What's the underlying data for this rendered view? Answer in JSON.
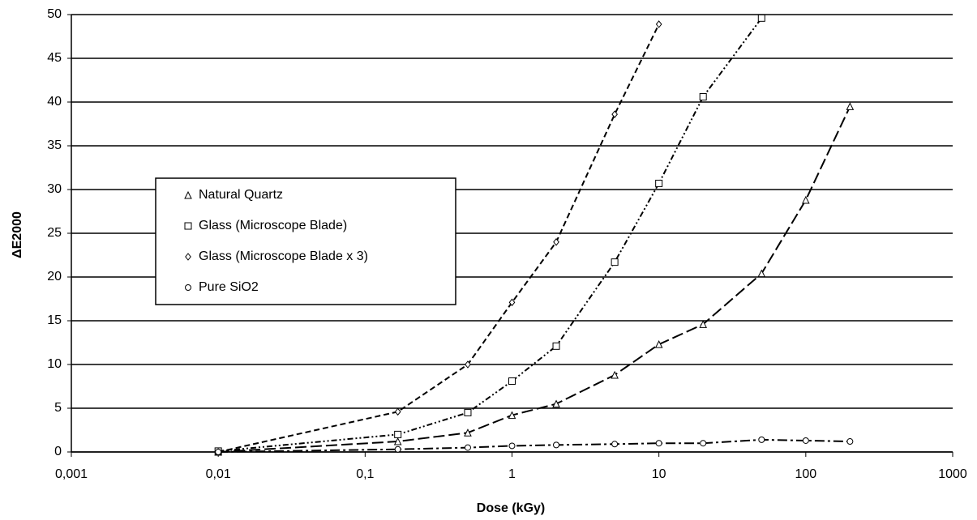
{
  "chart_data": {
    "type": "scatter",
    "x_label": "Dose (kGy)",
    "y_label": "ΔE2000",
    "xscale": "log",
    "xlim": [
      0.001,
      1000
    ],
    "xticks": [
      {
        "value": 0.001,
        "label": "0,001"
      },
      {
        "value": 0.01,
        "label": "0,01"
      },
      {
        "value": 0.1,
        "label": "0,1"
      },
      1,
      10,
      100,
      1000
    ],
    "ylim": [
      0,
      50
    ],
    "yticks": [
      0,
      5,
      10,
      15,
      20,
      25,
      30,
      35,
      40,
      45,
      50
    ],
    "grid": true,
    "legend": "left",
    "series": [
      {
        "name": "Natural Quartz",
        "marker": "triangle",
        "color": "#000000",
        "x": [
          0.01,
          0.167,
          0.5,
          1,
          2,
          5,
          10,
          20,
          50,
          100,
          200
        ],
        "values": [
          0,
          1.2,
          2.2,
          4.2,
          5.5,
          8.8,
          12.3,
          14.6,
          20.4,
          28.8,
          39.5
        ]
      },
      {
        "name": "Glass (Microscope Blade)",
        "marker": "square",
        "color": "#000000",
        "x": [
          0.01,
          0.167,
          0.5,
          1,
          2,
          5,
          10,
          20,
          50
        ],
        "values": [
          0.1,
          2,
          4.5,
          8.1,
          12.1,
          21.7,
          30.7,
          40.6,
          49.6
        ]
      },
      {
        "name": "Glass (Microscope Blade x 3)",
        "marker": "diamond",
        "color": "#000000",
        "x": [
          0.01,
          0.167,
          0.5,
          1,
          2,
          5,
          10
        ],
        "values": [
          0,
          4.6,
          10,
          17.1,
          24,
          38.6,
          48.9
        ]
      },
      {
        "name": "Pure SiO2",
        "marker": "circle",
        "color": "#000000",
        "x": [
          0.01,
          0.167,
          0.5,
          1,
          2,
          5,
          10,
          20,
          50,
          100,
          200
        ],
        "values": [
          0,
          0.3,
          0.5,
          0.7,
          0.8,
          0.9,
          1.0,
          1.0,
          1.4,
          1.3,
          1.2
        ]
      }
    ]
  }
}
